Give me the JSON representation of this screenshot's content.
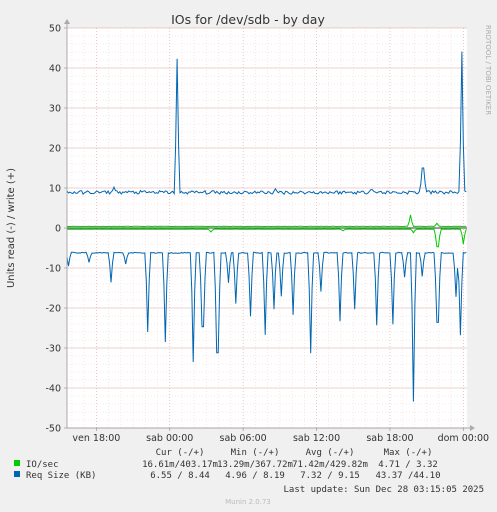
{
  "chart_data": {
    "type": "line",
    "title": "IOs for /dev/sdb - by day",
    "ylabel": "Units read (-) / write (+)",
    "vertical_side_label": "RRDTOOL / TOBI OETIKER",
    "ylim": [
      -50,
      50
    ],
    "yticks": [
      "50",
      "40",
      "30",
      "20",
      "10",
      "0",
      "-10",
      "-20",
      "-30",
      "-40",
      "-50"
    ],
    "xticks": [
      "ven 18:00",
      "sab 00:00",
      "sab 06:00",
      "sab 12:00",
      "sab 18:00",
      "dom 00:00"
    ],
    "x_range_hours": [
      -2.4,
      30.3
    ],
    "grid": true,
    "series": [
      {
        "name": "IO/sec",
        "color": "#00cc00",
        "write_base": 0.4,
        "read_base": -0.3,
        "write_spikes": [
          [
            25.7,
            3.3
          ],
          [
            27.8,
            1.2
          ]
        ],
        "read_spikes": [
          [
            25.9,
            -1.2
          ],
          [
            27.9,
            -4.7
          ],
          [
            30.0,
            -4.0
          ],
          [
            9.4,
            -1.0
          ],
          [
            20.2,
            -0.7
          ]
        ]
      },
      {
        "name": "Req Size (KB)",
        "color": "#0066b3",
        "write_base": 8.9,
        "write_spikes": [
          [
            6.6,
            42.3
          ],
          [
            26.7,
            15.0
          ],
          [
            29.9,
            44.1
          ],
          [
            1.4,
            10.2
          ],
          [
            14.6,
            9.8
          ],
          [
            22.5,
            9.6
          ]
        ],
        "read_base": -6.2,
        "read_spikes": [
          [
            -2.3,
            -9.5
          ],
          [
            -0.6,
            -8.6
          ],
          [
            1.2,
            -13.6
          ],
          [
            2.4,
            -9.0
          ],
          [
            4.2,
            -26.0
          ],
          [
            5.6,
            -28.5
          ],
          [
            7.9,
            -33.5
          ],
          [
            8.7,
            -24.7
          ],
          [
            9.9,
            -31.2
          ],
          [
            10.8,
            -13.7
          ],
          [
            11.4,
            -18.9
          ],
          [
            12.6,
            -22.1
          ],
          [
            13.8,
            -26.7
          ],
          [
            14.5,
            -20.3
          ],
          [
            15.1,
            -17.1
          ],
          [
            16.1,
            -21.7
          ],
          [
            17.5,
            -31.3
          ],
          [
            18.4,
            -15.9
          ],
          [
            19.9,
            -23.3
          ],
          [
            21.1,
            -20.3
          ],
          [
            22.9,
            -24.3
          ],
          [
            24.2,
            -24.1
          ],
          [
            25.2,
            -12.3
          ],
          [
            25.9,
            -43.4
          ],
          [
            26.6,
            -12.1
          ],
          [
            27.9,
            -23.6
          ],
          [
            29.4,
            -17.2
          ],
          [
            29.8,
            -26.8
          ]
        ]
      }
    ],
    "legend": {
      "headers": [
        "Cur (-/+)",
        "Min (-/+)",
        "Avg (-/+)",
        "Max (-/+)"
      ],
      "rows": [
        {
          "name": "IO/sec",
          "color": "#00cc00",
          "cur": "16.61m/403.17m",
          "min": "13.29m/367.72m",
          "avg": "71.42m/429.82m",
          "max": "4.71 / 3.32"
        },
        {
          "name": "Req Size (KB)",
          "color": "#0066b3",
          "cur": "6.55 / 8.44",
          "min": "4.96 / 8.19",
          "avg": "7.32 / 9.15",
          "max": "43.37 /44.10"
        }
      ]
    },
    "last_update": "Last update: Sun Dec 28 03:15:05 2025",
    "footer": "Munin 2.0.73"
  }
}
